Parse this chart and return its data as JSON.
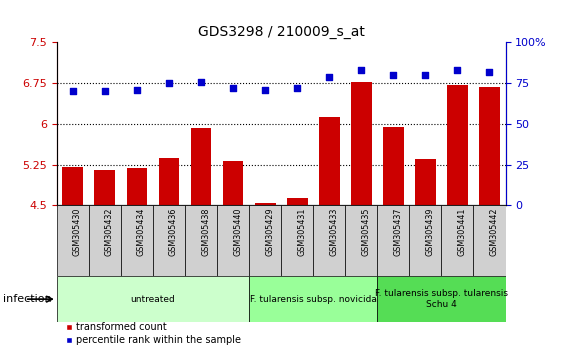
{
  "title": "GDS3298 / 210009_s_at",
  "samples": [
    "GSM305430",
    "GSM305432",
    "GSM305434",
    "GSM305436",
    "GSM305438",
    "GSM305440",
    "GSM305429",
    "GSM305431",
    "GSM305433",
    "GSM305435",
    "GSM305437",
    "GSM305439",
    "GSM305441",
    "GSM305442"
  ],
  "bar_values": [
    5.2,
    5.15,
    5.18,
    5.38,
    5.92,
    5.32,
    4.55,
    4.63,
    6.12,
    6.78,
    5.95,
    5.36,
    6.72,
    6.68
  ],
  "dot_values": [
    70,
    70,
    71,
    75,
    76,
    72,
    71,
    72,
    79,
    83,
    80,
    80,
    83,
    82
  ],
  "ylim_left": [
    4.5,
    7.5
  ],
  "ylim_right": [
    0,
    100
  ],
  "yticks_left": [
    4.5,
    5.25,
    6.0,
    6.75,
    7.5
  ],
  "yticks_right": [
    0,
    25,
    50,
    75,
    100
  ],
  "ytick_labels_left": [
    "4.5",
    "5.25",
    "6",
    "6.75",
    "7.5"
  ],
  "ytick_labels_right": [
    "0",
    "25",
    "50",
    "75",
    "100%"
  ],
  "hlines": [
    5.25,
    6.0,
    6.75
  ],
  "bar_color": "#cc0000",
  "dot_color": "#0000cc",
  "groups": [
    {
      "label": "untreated",
      "start": 0,
      "end": 6,
      "color": "#ccffcc"
    },
    {
      "label": "F. tularensis subsp. novicida",
      "start": 6,
      "end": 10,
      "color": "#99ff99"
    },
    {
      "label": "F. tularensis subsp. tularensis\nSchu 4",
      "start": 10,
      "end": 14,
      "color": "#55dd55"
    }
  ],
  "xlabel_infection": "infection",
  "legend_bar": "transformed count",
  "legend_dot": "percentile rank within the sample",
  "tick_bg_color": "#d0d0d0",
  "spine_color": "#000000"
}
